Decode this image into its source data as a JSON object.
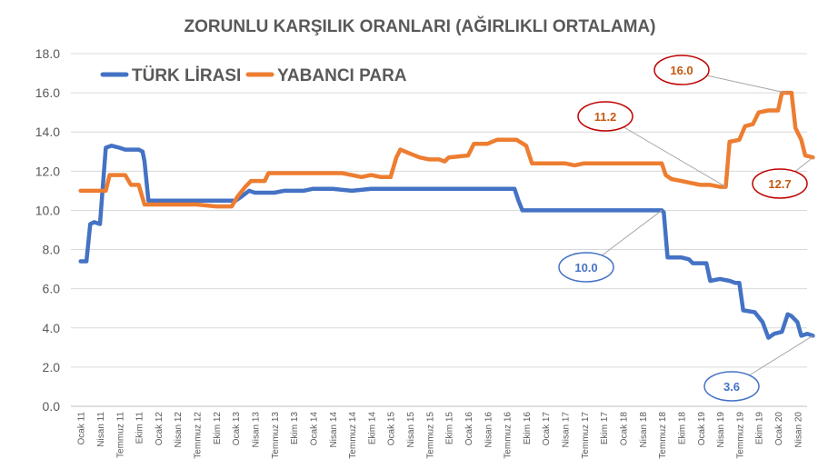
{
  "chart_data": {
    "type": "line",
    "title": "ZORUNLU KARŞILIK ORANLARI (AĞIRLIKLI ORTALAMA)",
    "xlabel": "",
    "ylabel": "",
    "ylim": [
      0,
      18
    ],
    "yticks": [
      "0.0",
      "2.0",
      "4.0",
      "6.0",
      "8.0",
      "10.0",
      "12.0",
      "14.0",
      "16.0",
      "18.0"
    ],
    "grid": true,
    "legend_position": "top-left",
    "x_tick_labels": [
      "Ocak 11",
      "Nisan 11",
      "Temmuz 11",
      "Ekim 11",
      "Ocak 12",
      "Nisan 12",
      "Temmuz 12",
      "Ekim 12",
      "Ocak 13",
      "Nisan 13",
      "Temmuz 13",
      "Ekim 13",
      "Ocak 14",
      "Nisan 14",
      "Temmuz 14",
      "Ekim 14",
      "Ocak 15",
      "Nisan 15",
      "Temmuz 15",
      "Ekim 15",
      "Ocak 16",
      "Nisan 16",
      "Temmuz 16",
      "Ekim 16",
      "Ocak 17",
      "Nisan 17",
      "Temmuz 17",
      "Ekim 17",
      "Ocak 18",
      "Nisan 18",
      "Temmuz 18",
      "Ekim 18",
      "Ocak 19",
      "Nisan 19",
      "Temmuz 19",
      "Ekim 19",
      "Ocak 20",
      "Nisan 20"
    ],
    "series": [
      {
        "name": "TÜRK LİRASI",
        "color": "#4472C4",
        "points": [
          [
            0,
            7.4
          ],
          [
            0.3,
            7.4
          ],
          [
            0.5,
            9.3
          ],
          [
            0.7,
            9.4
          ],
          [
            1,
            9.3
          ],
          [
            1.3,
            13.2
          ],
          [
            1.6,
            13.3
          ],
          [
            2,
            13.2
          ],
          [
            2.3,
            13.1
          ],
          [
            2.7,
            13.1
          ],
          [
            3,
            13.1
          ],
          [
            3.2,
            13.0
          ],
          [
            3.3,
            12.5
          ],
          [
            3.5,
            10.5
          ],
          [
            4,
            10.5
          ],
          [
            4.5,
            10.5
          ],
          [
            5,
            10.5
          ],
          [
            5.5,
            10.5
          ],
          [
            6,
            10.5
          ],
          [
            7,
            10.5
          ],
          [
            7.5,
            10.5
          ],
          [
            8,
            10.5
          ],
          [
            8.3,
            10.7
          ],
          [
            8.7,
            11.0
          ],
          [
            9,
            10.9
          ],
          [
            9.5,
            10.9
          ],
          [
            10,
            10.9
          ],
          [
            10.5,
            11.0
          ],
          [
            11,
            11.0
          ],
          [
            11.5,
            11.0
          ],
          [
            12,
            11.1
          ],
          [
            13,
            11.1
          ],
          [
            14,
            11.0
          ],
          [
            15,
            11.1
          ],
          [
            16,
            11.1
          ],
          [
            17,
            11.1
          ],
          [
            17.5,
            11.1
          ],
          [
            18,
            11.1
          ],
          [
            19,
            11.1
          ],
          [
            20,
            11.1
          ],
          [
            21,
            11.1
          ],
          [
            22,
            11.1
          ],
          [
            22.4,
            11.1
          ],
          [
            22.6,
            10.5
          ],
          [
            22.8,
            10.0
          ],
          [
            23.5,
            10.0
          ],
          [
            24,
            10.0
          ],
          [
            25,
            10.0
          ],
          [
            26,
            10.0
          ],
          [
            27,
            10.0
          ],
          [
            28,
            10.0
          ],
          [
            29,
            10.0
          ],
          [
            29.5,
            10.0
          ],
          [
            30,
            10.0
          ],
          [
            30.1,
            9.9
          ],
          [
            30.3,
            7.6
          ],
          [
            31,
            7.6
          ],
          [
            31.4,
            7.5
          ],
          [
            31.6,
            7.3
          ],
          [
            32,
            7.3
          ],
          [
            32.3,
            7.3
          ],
          [
            32.5,
            6.4
          ],
          [
            33,
            6.5
          ],
          [
            33.5,
            6.4
          ],
          [
            33.8,
            6.3
          ],
          [
            34,
            6.3
          ],
          [
            34.2,
            4.9
          ],
          [
            34.8,
            4.8
          ],
          [
            35.2,
            4.3
          ],
          [
            35.5,
            3.5
          ],
          [
            35.8,
            3.7
          ],
          [
            36.2,
            3.8
          ],
          [
            36.5,
            4.7
          ],
          [
            36.7,
            4.6
          ],
          [
            37,
            4.3
          ],
          [
            37.2,
            3.6
          ],
          [
            37.5,
            3.7
          ],
          [
            37.8,
            3.6
          ]
        ],
        "callouts": [
          {
            "label": "10.0",
            "x": 30,
            "y": 10.0
          },
          {
            "label": "3.6",
            "x": 37.8,
            "y": 3.6
          }
        ]
      },
      {
        "name": "YABANCI PARA",
        "color": "#ED7D31",
        "points": [
          [
            0,
            11.0
          ],
          [
            0.5,
            11.0
          ],
          [
            1,
            11.0
          ],
          [
            1.3,
            11.0
          ],
          [
            1.5,
            11.8
          ],
          [
            2,
            11.8
          ],
          [
            2.3,
            11.8
          ],
          [
            2.6,
            11.3
          ],
          [
            3,
            11.3
          ],
          [
            3.3,
            10.3
          ],
          [
            4,
            10.3
          ],
          [
            5,
            10.3
          ],
          [
            6,
            10.3
          ],
          [
            7,
            10.2
          ],
          [
            7.8,
            10.2
          ],
          [
            8.1,
            10.7
          ],
          [
            8.5,
            11.2
          ],
          [
            8.8,
            11.5
          ],
          [
            9.5,
            11.5
          ],
          [
            9.7,
            11.9
          ],
          [
            10,
            11.9
          ],
          [
            11,
            11.9
          ],
          [
            12,
            11.9
          ],
          [
            13,
            11.9
          ],
          [
            13.5,
            11.9
          ],
          [
            14,
            11.8
          ],
          [
            14.5,
            11.7
          ],
          [
            15,
            11.8
          ],
          [
            15.5,
            11.7
          ],
          [
            16,
            11.7
          ],
          [
            16.3,
            12.7
          ],
          [
            16.5,
            13.1
          ],
          [
            17,
            12.9
          ],
          [
            17.5,
            12.7
          ],
          [
            18,
            12.6
          ],
          [
            18.5,
            12.6
          ],
          [
            18.8,
            12.5
          ],
          [
            19,
            12.7
          ],
          [
            20,
            12.8
          ],
          [
            20.3,
            13.4
          ],
          [
            21,
            13.4
          ],
          [
            21.5,
            13.6
          ],
          [
            22,
            13.6
          ],
          [
            22.5,
            13.6
          ],
          [
            23,
            13.3
          ],
          [
            23.3,
            12.4
          ],
          [
            24,
            12.4
          ],
          [
            25,
            12.4
          ],
          [
            25.5,
            12.3
          ],
          [
            26,
            12.4
          ],
          [
            27,
            12.4
          ],
          [
            28,
            12.4
          ],
          [
            28.5,
            12.4
          ],
          [
            29,
            12.4
          ],
          [
            29.5,
            12.4
          ],
          [
            30,
            12.4
          ],
          [
            30.2,
            11.8
          ],
          [
            30.5,
            11.6
          ],
          [
            31,
            11.5
          ],
          [
            31.5,
            11.4
          ],
          [
            32,
            11.3
          ],
          [
            32.5,
            11.3
          ],
          [
            33,
            11.2
          ],
          [
            33.3,
            11.2
          ],
          [
            33.5,
            13.5
          ],
          [
            34,
            13.6
          ],
          [
            34.3,
            14.3
          ],
          [
            34.7,
            14.4
          ],
          [
            35,
            15.0
          ],
          [
            35.5,
            15.1
          ],
          [
            36,
            15.1
          ],
          [
            36.2,
            16.0
          ],
          [
            36.7,
            16.0
          ],
          [
            36.9,
            14.2
          ],
          [
            37.2,
            13.6
          ],
          [
            37.4,
            12.8
          ],
          [
            37.8,
            12.7
          ]
        ],
        "callouts": [
          {
            "label": "11.2",
            "x": 33.3,
            "y": 11.2
          },
          {
            "label": "16.0",
            "x": 36.4,
            "y": 16.0
          },
          {
            "label": "12.7",
            "x": 37.8,
            "y": 12.7
          }
        ]
      }
    ]
  }
}
